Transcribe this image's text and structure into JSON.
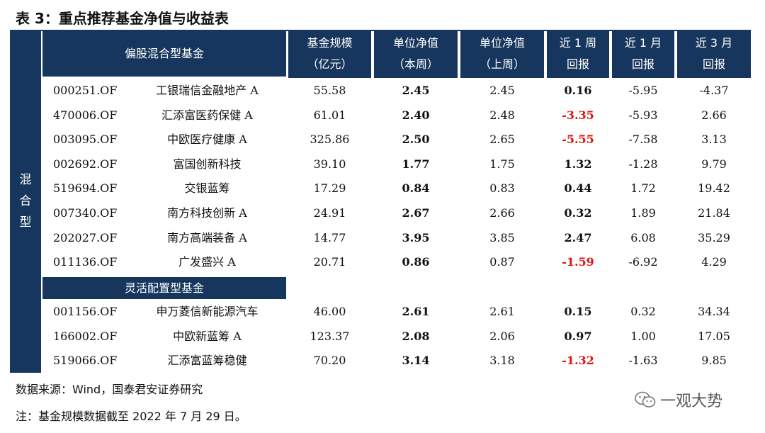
{
  "title": "表 3：重点推荐基金净值与收益表",
  "side_label": "混合型",
  "headers": {
    "category1": "偏股混合型基金",
    "size": [
      "基金规模",
      "（亿元）"
    ],
    "nav_this": [
      "单位净值",
      "（本周）"
    ],
    "nav_last": [
      "单位净值",
      "（上周）"
    ],
    "w1": [
      "近 1 周",
      "回报"
    ],
    "m1": [
      "近 1 月",
      "回报"
    ],
    "m3": [
      "近 3 月",
      "回报"
    ]
  },
  "category2": "灵活配置型基金",
  "rows_group1": [
    {
      "code": "000251.OF",
      "name": "工银瑞信金融地产 A",
      "size": "55.58",
      "nav": "2.45",
      "prev": "2.45",
      "w1": "0.16",
      "m1": "-5.95",
      "m3": "-4.37"
    },
    {
      "code": "470006.OF",
      "name": "汇添富医药保健 A",
      "size": "61.01",
      "nav": "2.40",
      "prev": "2.48",
      "w1": "-3.35",
      "m1": "-5.93",
      "m3": "2.66"
    },
    {
      "code": "003095.OF",
      "name": "中欧医疗健康 A",
      "size": "325.86",
      "nav": "2.50",
      "prev": "2.65",
      "w1": "-5.55",
      "m1": "-7.58",
      "m3": "3.13"
    },
    {
      "code": "002692.OF",
      "name": "富国创新科技",
      "size": "39.10",
      "nav": "1.77",
      "prev": "1.75",
      "w1": "1.32",
      "m1": "-1.28",
      "m3": "9.79"
    },
    {
      "code": "519694.OF",
      "name": "交银蓝筹",
      "size": "17.29",
      "nav": "0.84",
      "prev": "0.83",
      "w1": "0.44",
      "m1": "1.72",
      "m3": "19.42"
    },
    {
      "code": "007340.OF",
      "name": "南方科技创新 A",
      "size": "24.91",
      "nav": "2.67",
      "prev": "2.66",
      "w1": "0.32",
      "m1": "1.89",
      "m3": "21.84"
    },
    {
      "code": "202027.OF",
      "name": "南方高端装备 A",
      "size": "14.77",
      "nav": "3.95",
      "prev": "3.85",
      "w1": "2.47",
      "m1": "6.08",
      "m3": "35.29"
    },
    {
      "code": "011136.OF",
      "name": "广发盛兴 A",
      "size": "20.71",
      "nav": "0.86",
      "prev": "0.87",
      "w1": "-1.59",
      "m1": "-6.92",
      "m3": "4.29"
    }
  ],
  "rows_group2": [
    {
      "code": "001156.OF",
      "name": "申万菱信新能源汽车",
      "size": "46.00",
      "nav": "2.61",
      "prev": "2.61",
      "w1": "0.15",
      "m1": "0.32",
      "m3": "34.34"
    },
    {
      "code": "166002.OF",
      "name": "中欧新蓝筹 A",
      "size": "123.37",
      "nav": "2.08",
      "prev": "2.06",
      "w1": "0.97",
      "m1": "1.00",
      "m3": "17.05"
    },
    {
      "code": "519066.OF",
      "name": "汇添富蓝筹稳健",
      "size": "70.20",
      "nav": "3.14",
      "prev": "3.18",
      "w1": "-1.32",
      "m1": "-1.63",
      "m3": "9.85"
    }
  ],
  "source": "数据来源：Wind，国泰君安证券研究",
  "note": "注：基金规模数据截至 2022 年 7 月 29 日。",
  "watermark": "一观大势",
  "colors": {
    "header_bg": "#17365d",
    "negative": "#e3120b"
  }
}
